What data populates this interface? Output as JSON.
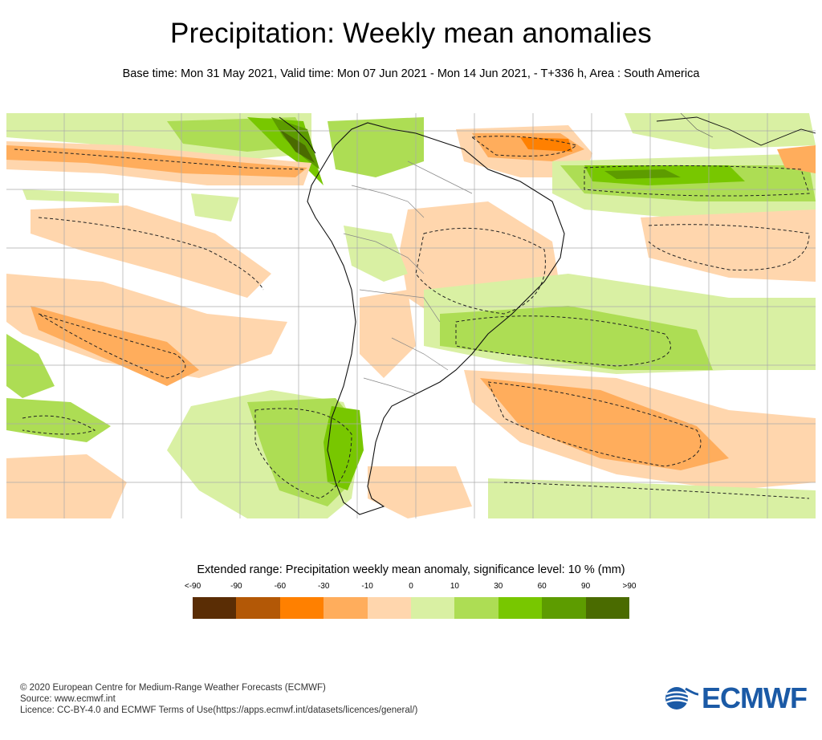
{
  "title": "Precipitation: Weekly mean anomalies",
  "subtitle": "Base time: Mon 31 May 2021, Valid time: Mon 07 Jun 2021 - Mon 14 Jun 2021, - T+336 h, Area : South America",
  "legend": {
    "title": "Extended range: Precipitation weekly mean anomaly, significance level: 10 % (mm)",
    "ticks": [
      "<-90",
      "-90",
      "-60",
      "-30",
      "-10",
      "0",
      "10",
      "30",
      "60",
      "90",
      ">90"
    ],
    "colors": [
      "#5a2d05",
      "#b35806",
      "#ff8000",
      "#ffad5c",
      "#ffd6ad",
      "#d9f0a3",
      "#addd54",
      "#78c700",
      "#5d9c00",
      "#4a6b00"
    ]
  },
  "map": {
    "colors": {
      "dry_strong": "#ff8000",
      "dry_moderate": "#ffad5c",
      "dry_light": "#ffd6ad",
      "wet_light": "#d9f0a3",
      "wet_moderate": "#addd54",
      "wet_strong": "#78c700",
      "wet_very_strong": "#5d9c00",
      "wet_extreme": "#4a6b00",
      "coast": "#000000",
      "borders": "#888888",
      "grid": "#aaaaaa"
    }
  },
  "footer": {
    "copyright": "© 2020 European Centre for Medium-Range Weather Forecasts (ECMWF)",
    "source": "Source: www.ecmwf.int",
    "licence": "Licence: CC-BY-4.0 and ECMWF Terms of Use(https://apps.ecmwf.int/datasets/licences/general/)"
  },
  "logo": {
    "text": "ECMWF",
    "color": "#1b5aa6"
  }
}
